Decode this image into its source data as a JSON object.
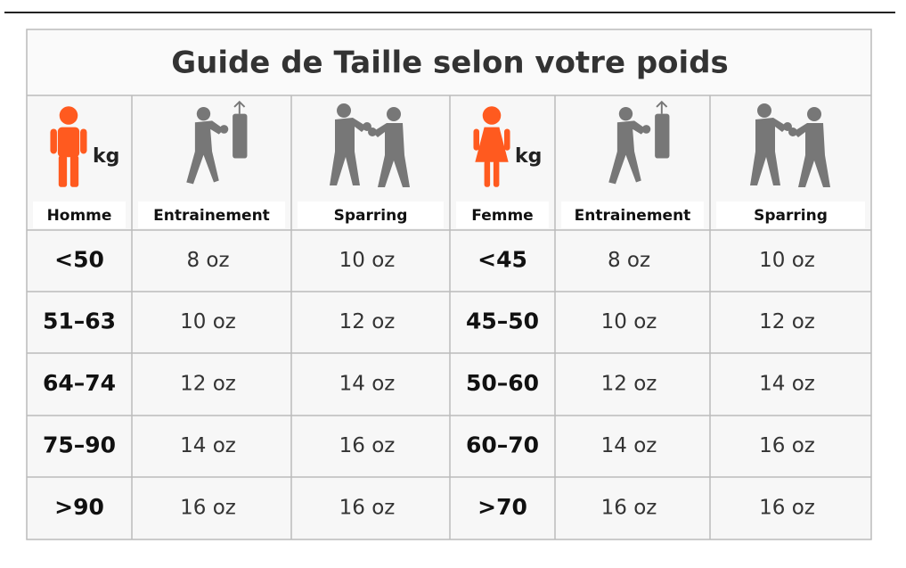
{
  "title": "Guide de Taille selon votre poids",
  "table": {
    "unit_label": "kg",
    "headers": [
      "Homme",
      "Entrainement",
      "Sparring",
      "Femme",
      "Entrainement",
      "Sparring"
    ],
    "rows": [
      [
        "<50",
        "8 oz",
        "10 oz",
        "<45",
        "8 oz",
        "10 oz"
      ],
      [
        "51–63",
        "10 oz",
        "12 oz",
        "45–50",
        "10 oz",
        "12 oz"
      ],
      [
        "64–74",
        "12 oz",
        "14 oz",
        "50–60",
        "12 oz",
        "14 oz"
      ],
      [
        "75–90",
        "14 oz",
        "16 oz",
        "60–70",
        "14 oz",
        "16 oz"
      ],
      [
        ">90",
        "16 oz",
        "16 oz",
        ">70",
        "16 oz",
        "16 oz"
      ]
    ]
  }
}
